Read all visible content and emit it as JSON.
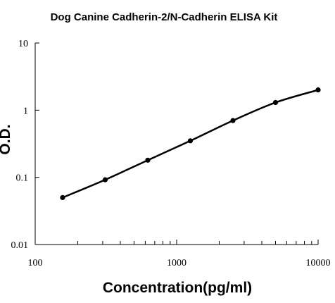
{
  "chart_data": {
    "type": "line",
    "title": "Dog Canine Cadherin-2/N-Cadherin  ELISA Kit",
    "xlabel": "Concentration(pg/ml)",
    "ylabel": "O.D.",
    "x_scale": "log",
    "y_scale": "log",
    "xlim": [
      100,
      10000
    ],
    "ylim": [
      0.01,
      10
    ],
    "x_ticks": [
      "100",
      "1000",
      "10000"
    ],
    "y_ticks": [
      "0.01",
      "0.1",
      "1",
      "10"
    ],
    "grid": false,
    "legend": "none",
    "series": [
      {
        "x": [
          156.25,
          312.5,
          625,
          1250,
          2500,
          5000,
          10000
        ],
        "y": [
          0.05,
          0.092,
          0.18,
          0.35,
          0.7,
          1.3,
          2.0
        ]
      }
    ],
    "colors": {
      "line": "#000000",
      "marker": "#000000",
      "axis": "#000000"
    }
  }
}
